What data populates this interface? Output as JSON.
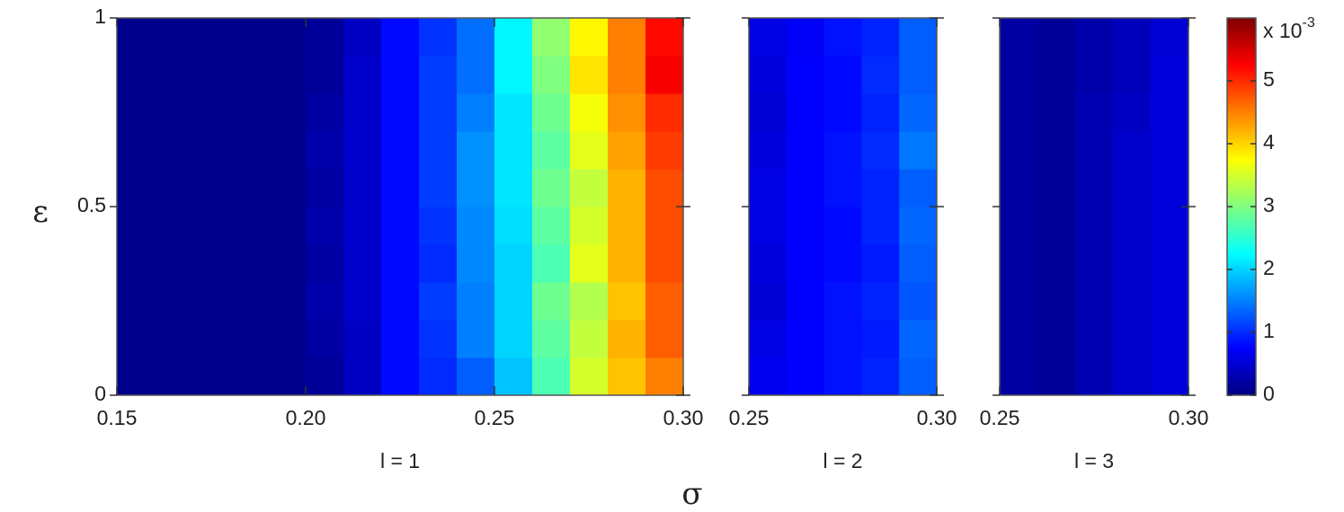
{
  "chart_data": {
    "type": "heatmap",
    "ylabel": "ε",
    "xlabel": "σ",
    "ylim": [
      0,
      1
    ],
    "yticks": [
      0,
      {
        "value": 0.5,
        "label": "0.5"
      },
      1
    ],
    "ybins": [
      0,
      0.1,
      0.2,
      0.3,
      0.4,
      0.5,
      0.6,
      0.7,
      0.8,
      0.9,
      1
    ],
    "colormap": "jet",
    "colorbar": {
      "label": "x 10",
      "exponent": "-3",
      "clim": [
        0,
        6
      ],
      "ticks": [
        0,
        1,
        2,
        3,
        4,
        5
      ]
    },
    "panels": [
      {
        "title": "l = 1",
        "xlim": [
          0.15,
          0.3
        ],
        "xticks": [
          {
            "value": 0.15,
            "label": "0.15"
          },
          {
            "value": 0.2,
            "label": "0.20"
          },
          {
            "value": 0.25,
            "label": "0.25"
          },
          {
            "value": 0.3,
            "label": "0.30"
          }
        ],
        "xbins": [
          0.15,
          0.16,
          0.17,
          0.18,
          0.19,
          0.2,
          0.21,
          0.22,
          0.23,
          0.24,
          0.25,
          0.26,
          0.27,
          0.28,
          0.29,
          0.3
        ],
        "z": [
          [
            0.08,
            0.08,
            0.08,
            0.08,
            0.08,
            0.15,
            0.4,
            0.8,
            1.0,
            1.3,
            1.9,
            2.7,
            3.5,
            4.1,
            4.5
          ],
          [
            0.08,
            0.08,
            0.08,
            0.08,
            0.08,
            0.2,
            0.4,
            0.8,
            1.05,
            1.5,
            2.0,
            2.8,
            3.4,
            4.2,
            4.7
          ],
          [
            0.08,
            0.08,
            0.08,
            0.08,
            0.08,
            0.25,
            0.45,
            0.8,
            1.1,
            1.5,
            2.0,
            2.9,
            3.3,
            4.1,
            4.7
          ],
          [
            0.08,
            0.08,
            0.08,
            0.08,
            0.08,
            0.2,
            0.45,
            0.8,
            1.0,
            1.55,
            2.0,
            2.7,
            3.6,
            4.2,
            4.8
          ],
          [
            0.08,
            0.08,
            0.08,
            0.08,
            0.08,
            0.25,
            0.45,
            0.8,
            1.05,
            1.55,
            2.05,
            2.8,
            3.5,
            4.2,
            4.8
          ],
          [
            0.08,
            0.08,
            0.08,
            0.08,
            0.08,
            0.2,
            0.45,
            0.8,
            1.1,
            1.6,
            2.1,
            2.9,
            3.4,
            4.2,
            4.8
          ],
          [
            0.08,
            0.08,
            0.08,
            0.08,
            0.08,
            0.25,
            0.45,
            0.8,
            1.1,
            1.6,
            2.1,
            2.8,
            3.6,
            4.3,
            4.9
          ],
          [
            0.08,
            0.08,
            0.08,
            0.08,
            0.08,
            0.2,
            0.45,
            0.8,
            1.1,
            1.5,
            2.1,
            2.9,
            3.7,
            4.4,
            5.0
          ],
          [
            0.08,
            0.08,
            0.08,
            0.08,
            0.08,
            0.15,
            0.45,
            0.8,
            1.1,
            1.4,
            2.2,
            3.0,
            3.9,
            4.5,
            5.3
          ],
          [
            0.08,
            0.08,
            0.08,
            0.08,
            0.08,
            0.15,
            0.4,
            0.8,
            1.05,
            1.4,
            2.2,
            3.1,
            3.8,
            4.5,
            5.2
          ]
        ]
      },
      {
        "title": "l = 2",
        "xlim": [
          0.25,
          0.3
        ],
        "xticks": [
          {
            "value": 0.25,
            "label": "0.25"
          },
          {
            "value": 0.3,
            "label": "0.30"
          }
        ],
        "xbins": [
          0.25,
          0.26,
          0.27,
          0.28,
          0.29,
          0.3
        ],
        "z": [
          [
            0.65,
            0.75,
            0.85,
            0.95,
            1.3
          ],
          [
            0.6,
            0.75,
            0.85,
            0.9,
            1.35
          ],
          [
            0.5,
            0.75,
            0.85,
            0.95,
            1.25
          ],
          [
            0.55,
            0.75,
            0.8,
            0.9,
            1.3
          ],
          [
            0.6,
            0.75,
            0.8,
            0.95,
            1.35
          ],
          [
            0.6,
            0.75,
            0.85,
            0.95,
            1.3
          ],
          [
            0.55,
            0.75,
            0.85,
            1.0,
            1.45
          ],
          [
            0.5,
            0.75,
            0.8,
            0.95,
            1.35
          ],
          [
            0.55,
            0.75,
            0.8,
            1.0,
            1.3
          ],
          [
            0.6,
            0.7,
            0.85,
            0.95,
            1.3
          ]
        ]
      },
      {
        "title": "l = 3",
        "xlim": [
          0.25,
          0.3
        ],
        "xticks": [
          {
            "value": 0.25,
            "label": "0.25"
          },
          {
            "value": 0.3,
            "label": "0.30"
          }
        ],
        "xbins": [
          0.25,
          0.26,
          0.27,
          0.28,
          0.29,
          0.3
        ],
        "z": [
          [
            0.2,
            0.15,
            0.3,
            0.45,
            0.55
          ],
          [
            0.2,
            0.15,
            0.3,
            0.45,
            0.55
          ],
          [
            0.2,
            0.15,
            0.3,
            0.45,
            0.55
          ],
          [
            0.2,
            0.15,
            0.3,
            0.45,
            0.55
          ],
          [
            0.2,
            0.15,
            0.3,
            0.45,
            0.55
          ],
          [
            0.2,
            0.15,
            0.3,
            0.45,
            0.55
          ],
          [
            0.2,
            0.15,
            0.3,
            0.45,
            0.55
          ],
          [
            0.2,
            0.15,
            0.3,
            0.4,
            0.55
          ],
          [
            0.2,
            0.15,
            0.25,
            0.35,
            0.55
          ],
          [
            0.2,
            0.15,
            0.25,
            0.35,
            0.5
          ]
        ]
      }
    ]
  }
}
